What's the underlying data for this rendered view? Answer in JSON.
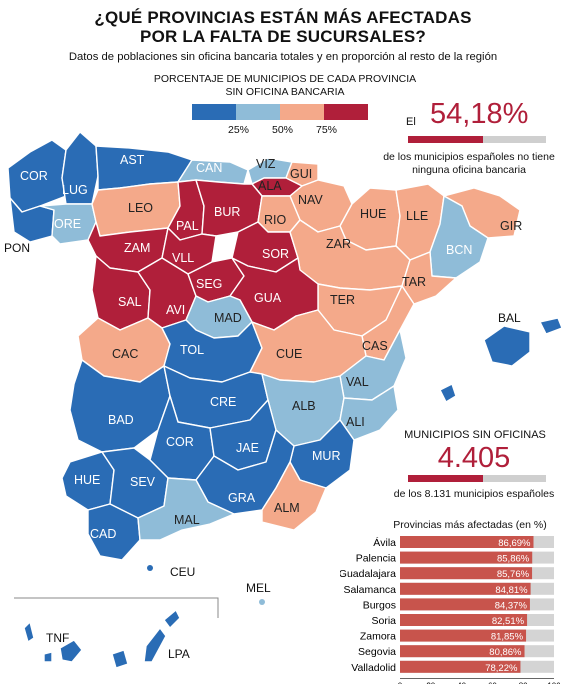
{
  "title_line1": "¿QUÉ PROVINCIAS ESTÁN MÁS AFECTADAS",
  "title_line2": "POR LA FALTA DE SUCURSALES?",
  "subtitle": "Datos de poblaciones sin oficina bancaria totales y en proporción al resto de la región",
  "legend": {
    "title_line1": "PORCENTAJE DE MUNICIPIOS DE CADA PROVINCIA",
    "title_line2": "SIN OFICINA BANCARIA",
    "ticks": [
      "25%",
      "50%",
      "75%"
    ],
    "colors": [
      "#2a6cb5",
      "#8fbcd8",
      "#f4a98a",
      "#b01f3a"
    ]
  },
  "provinces": [
    {
      "code": "COR",
      "bin": 0
    },
    {
      "code": "LUG",
      "bin": 0
    },
    {
      "code": "AST",
      "bin": 0
    },
    {
      "code": "ORE",
      "bin": 1
    },
    {
      "code": "PON",
      "bin": 0
    },
    {
      "code": "CAN",
      "bin": 1
    },
    {
      "code": "VIZ",
      "bin": 1
    },
    {
      "code": "GUI",
      "bin": 2
    },
    {
      "code": "ALA",
      "bin": 3
    },
    {
      "code": "NAV",
      "bin": 2
    },
    {
      "code": "LEO",
      "bin": 2
    },
    {
      "code": "BUR",
      "bin": 3
    },
    {
      "code": "PAL",
      "bin": 3
    },
    {
      "code": "RIO",
      "bin": 2
    },
    {
      "code": "HUE",
      "bin": 2
    },
    {
      "code": "LLE",
      "bin": 2
    },
    {
      "code": "GIR",
      "bin": 2
    },
    {
      "code": "BCN",
      "bin": 1
    },
    {
      "code": "ZAM",
      "bin": 3
    },
    {
      "code": "VLL",
      "bin": 3
    },
    {
      "code": "SOR",
      "bin": 3
    },
    {
      "code": "ZAR",
      "bin": 2
    },
    {
      "code": "TAR",
      "bin": 2
    },
    {
      "code": "SAL",
      "bin": 3
    },
    {
      "code": "AVI",
      "bin": 3
    },
    {
      "code": "SEG",
      "bin": 3
    },
    {
      "code": "GUA",
      "bin": 3
    },
    {
      "code": "TER",
      "bin": 2
    },
    {
      "code": "MAD",
      "bin": 1
    },
    {
      "code": "CAS",
      "bin": 2
    },
    {
      "code": "CAC",
      "bin": 2
    },
    {
      "code": "TOL",
      "bin": 0
    },
    {
      "code": "CUE",
      "bin": 2
    },
    {
      "code": "VAL",
      "bin": 1
    },
    {
      "code": "BAL",
      "bin": 0
    },
    {
      "code": "BAD",
      "bin": 0
    },
    {
      "code": "CRE",
      "bin": 0
    },
    {
      "code": "ALB",
      "bin": 1
    },
    {
      "code": "ALI",
      "bin": 1
    },
    {
      "code": "COR",
      "bin": 0
    },
    {
      "code": "JAE",
      "bin": 0
    },
    {
      "code": "MUR",
      "bin": 0
    },
    {
      "code": "HUE",
      "bin": 0
    },
    {
      "code": "SEV",
      "bin": 0
    },
    {
      "code": "GRA",
      "bin": 0
    },
    {
      "code": "ALM",
      "bin": 2
    },
    {
      "code": "CAD",
      "bin": 0
    },
    {
      "code": "MAL",
      "bin": 1
    },
    {
      "code": "CEU",
      "bin": null
    },
    {
      "code": "MEL",
      "bin": null
    },
    {
      "code": "TNF",
      "bin": 0
    },
    {
      "code": "LPA",
      "bin": 0
    }
  ],
  "stat1": {
    "prefix": "El",
    "value": "54,18%",
    "percent": 54.18,
    "desc_line1": "de los municipios españoles no tiene",
    "desc_line2": "ninguna oficina bancaria"
  },
  "stat2": {
    "label": "MUNICIPIOS SIN OFICINAS",
    "value": "4.405",
    "fraction": 0.5418,
    "desc": "de los 8.131 municipios españoles"
  },
  "chart_data": {
    "type": "bar",
    "title": "Provincias más afectadas (en %)",
    "categories": [
      "Ávila",
      "Palencia",
      "Guadalajara",
      "Salamanca",
      "Burgos",
      "Soria",
      "Zamora",
      "Segovia",
      "Valladolid"
    ],
    "values": [
      86.69,
      85.86,
      85.76,
      84.81,
      84.37,
      82.51,
      81.85,
      80.86,
      78.22
    ],
    "value_labels": [
      "86,69%",
      "85,86%",
      "85,76%",
      "84,81%",
      "84,37%",
      "82,51%",
      "81,85%",
      "80,86%",
      "78,22%"
    ],
    "xlim": [
      0,
      100
    ],
    "xticks": [
      "0",
      "20",
      "40",
      "60",
      "80",
      "100"
    ],
    "bar_color": "#c8544c",
    "track_color": "#d4d4d4"
  }
}
